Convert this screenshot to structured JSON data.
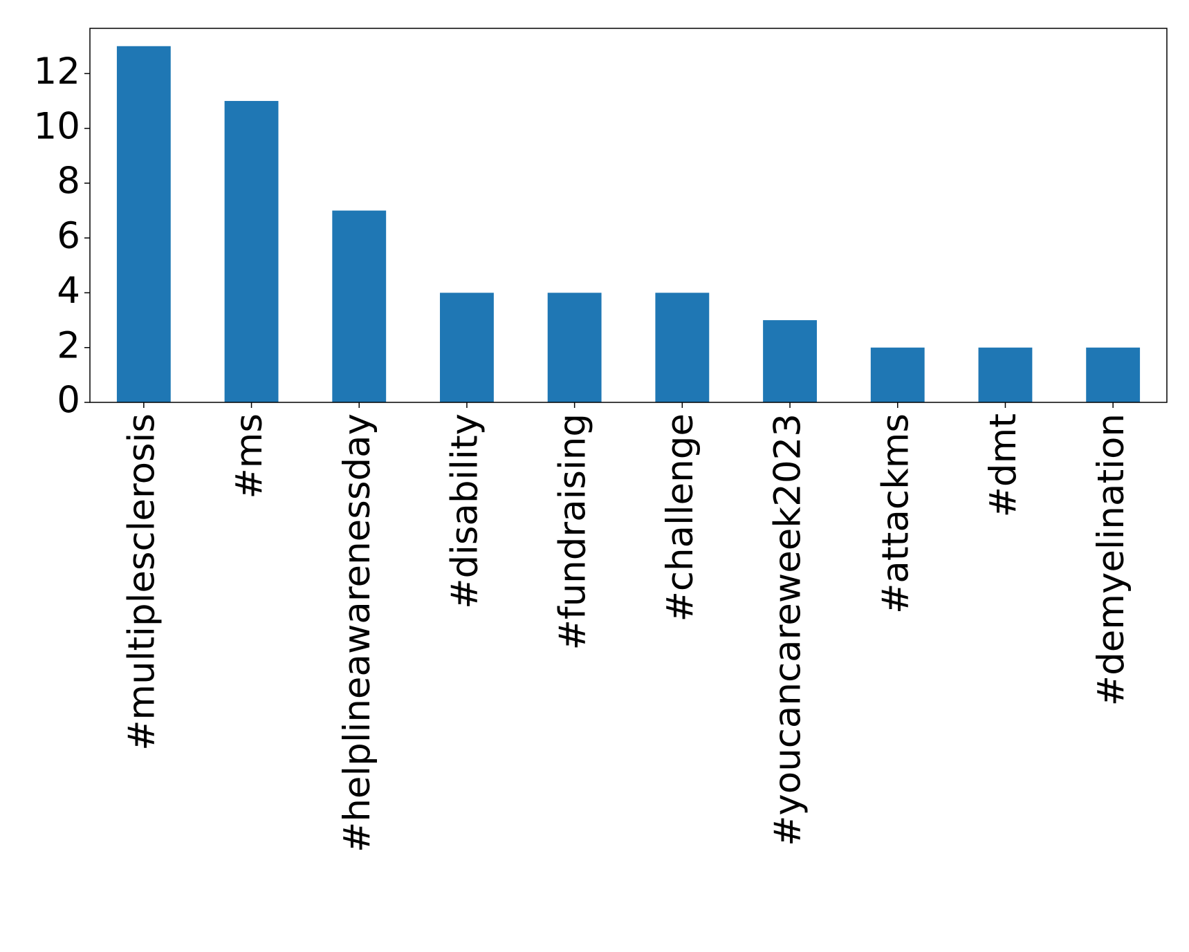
{
  "chart_data": {
    "type": "bar",
    "categories": [
      "#multiplesclerosis",
      "#ms",
      "#helplineawarenessday",
      "#disability",
      "#fundraising",
      "#challenge",
      "#youcancareweek2023",
      "#attackms",
      "#dmt",
      "#demyelination"
    ],
    "values": [
      13,
      11,
      7,
      4,
      4,
      4,
      3,
      2,
      2,
      2
    ],
    "color": "#1f77b4",
    "ylim": [
      0,
      13.65
    ],
    "yticks": [
      0,
      2,
      4,
      6,
      8,
      10,
      12
    ],
    "grid": false
  }
}
